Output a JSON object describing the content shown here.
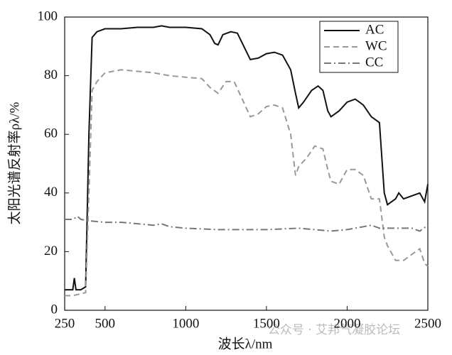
{
  "chart_data": {
    "type": "line",
    "xlabel": "波长λ/nm",
    "ylabel": "太阳光谱反射率ρλ/%",
    "xlim": [
      250,
      2500
    ],
    "xticks": [
      250,
      500,
      1000,
      1500,
      2000,
      2500
    ],
    "ylim": [
      0,
      100
    ],
    "yticks": [
      0,
      20,
      40,
      60,
      80,
      100
    ],
    "grid": false,
    "legend": "upper right",
    "watermark": "公众号 · 艾邦气凝胶论坛",
    "series": [
      {
        "name": "AC",
        "color": "#111111",
        "dash": "solid",
        "x": [
          250,
          300,
          310,
          320,
          350,
          380,
          400,
          420,
          450,
          500,
          600,
          700,
          800,
          850,
          900,
          1000,
          1100,
          1150,
          1180,
          1200,
          1230,
          1280,
          1320,
          1360,
          1400,
          1450,
          1500,
          1550,
          1600,
          1650,
          1680,
          1700,
          1730,
          1780,
          1820,
          1850,
          1880,
          1900,
          1950,
          2000,
          2050,
          2100,
          2150,
          2200,
          2230,
          2250,
          2300,
          2320,
          2350,
          2400,
          2450,
          2480,
          2500
        ],
        "values": [
          7,
          7,
          11,
          7,
          7,
          8,
          60,
          93,
          95,
          96,
          96,
          96.5,
          96.5,
          97,
          96.5,
          96.5,
          96,
          94,
          91,
          90.5,
          94,
          95,
          94.5,
          90,
          85.5,
          86,
          87.5,
          88,
          87,
          82,
          74,
          69,
          71,
          75,
          76.5,
          75,
          68,
          66,
          68,
          71,
          72,
          70,
          66,
          64,
          40,
          36,
          38,
          40,
          38,
          39,
          40,
          37,
          43
        ]
      },
      {
        "name": "WC",
        "color": "#999999",
        "dash": "dashed",
        "x": [
          250,
          300,
          380,
          400,
          420,
          450,
          500,
          600,
          800,
          900,
          1000,
          1100,
          1150,
          1200,
          1250,
          1300,
          1350,
          1400,
          1450,
          1500,
          1550,
          1600,
          1650,
          1680,
          1700,
          1750,
          1800,
          1850,
          1880,
          1900,
          1950,
          2000,
          2050,
          2100,
          2150,
          2200,
          2230,
          2250,
          2300,
          2350,
          2400,
          2450,
          2480,
          2500
        ],
        "values": [
          5,
          5,
          6,
          40,
          75,
          78,
          81,
          82,
          81,
          80,
          79.5,
          79,
          76,
          74,
          78,
          78,
          72,
          66,
          67,
          69.5,
          70,
          69,
          60,
          46,
          49,
          52,
          56,
          55,
          48,
          44,
          43,
          48,
          48,
          46,
          38,
          38,
          25,
          22,
          17,
          17,
          19,
          21,
          16,
          15
        ]
      },
      {
        "name": "CC",
        "color": "#777777",
        "dash": "dashdot",
        "x": [
          250,
          300,
          330,
          350,
          400,
          500,
          600,
          800,
          850,
          900,
          1000,
          1200,
          1500,
          1700,
          1900,
          2000,
          2100,
          2150,
          2200,
          2300,
          2400,
          2450,
          2500
        ],
        "values": [
          31,
          31,
          32,
          31,
          30.5,
          30,
          30,
          29,
          29.5,
          28.5,
          28,
          27.5,
          27.5,
          28,
          27,
          27.5,
          28.5,
          29,
          28,
          28,
          28,
          27,
          29
        ]
      }
    ]
  }
}
